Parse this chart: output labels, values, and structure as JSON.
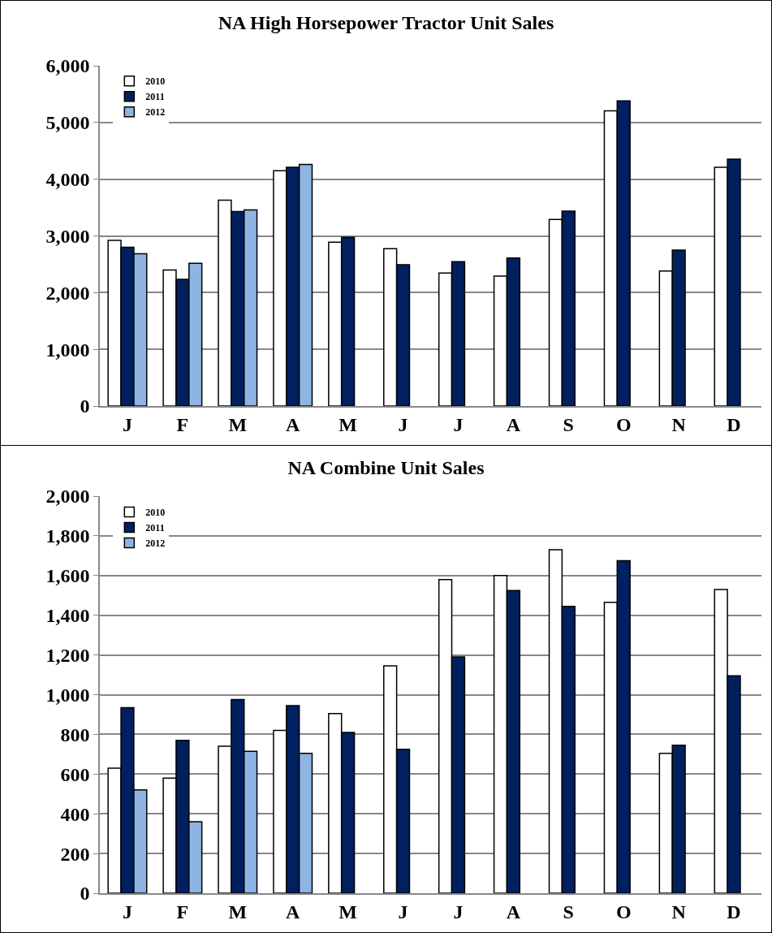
{
  "chart_data": [
    {
      "type": "bar",
      "title": "NA High Horsepower Tractor Unit Sales",
      "categories": [
        "J",
        "F",
        "M",
        "A",
        "M",
        "J",
        "J",
        "A",
        "S",
        "O",
        "N",
        "D"
      ],
      "series": [
        {
          "name": "2010",
          "color": "#ffffff",
          "values": [
            2920,
            2400,
            3630,
            4150,
            2890,
            2775,
            2345,
            2290,
            3290,
            5205,
            2380,
            4210
          ]
        },
        {
          "name": "2011",
          "color": "#002060",
          "values": [
            2800,
            2235,
            3430,
            4210,
            2975,
            2490,
            2545,
            2610,
            3435,
            5380,
            2750,
            4355
          ]
        },
        {
          "name": "2012",
          "color": "#8eb4e3",
          "values": [
            2685,
            2515,
            3460,
            4260,
            null,
            null,
            null,
            null,
            null,
            null,
            null,
            null
          ]
        }
      ],
      "ylim": [
        0,
        6000
      ],
      "yticks": [
        0,
        {
          "value": 1000,
          "label": "1,000"
        },
        {
          "value": 2000,
          "label": "2,000"
        },
        {
          "value": 3000,
          "label": "3,000"
        },
        {
          "value": 4000,
          "label": "4,000"
        },
        {
          "value": 5000,
          "label": "5,000"
        },
        {
          "value": 6000,
          "label": "6,000"
        }
      ],
      "grid": "y",
      "legend": "top left"
    },
    {
      "type": "bar",
      "title": "NA Combine Unit Sales",
      "categories": [
        "J",
        "F",
        "M",
        "A",
        "M",
        "J",
        "J",
        "A",
        "S",
        "O",
        "N",
        "D"
      ],
      "series": [
        {
          "name": "2010",
          "color": "#ffffff",
          "values": [
            630,
            580,
            740,
            820,
            905,
            1145,
            1580,
            1600,
            1730,
            1465,
            705,
            1530
          ]
        },
        {
          "name": "2011",
          "color": "#002060",
          "values": [
            935,
            770,
            975,
            945,
            810,
            725,
            1190,
            1525,
            1445,
            1675,
            745,
            1095
          ]
        },
        {
          "name": "2012",
          "color": "#8eb4e3",
          "values": [
            520,
            360,
            715,
            705,
            null,
            null,
            null,
            null,
            null,
            null,
            null,
            null
          ]
        }
      ],
      "ylim": [
        0,
        2000
      ],
      "yticks": [
        0,
        200,
        400,
        600,
        800,
        {
          "value": 1000,
          "label": "1,000"
        },
        {
          "value": 1200,
          "label": "1,200"
        },
        {
          "value": 1400,
          "label": "1,400"
        },
        {
          "value": 1600,
          "label": "1,600"
        },
        {
          "value": 1800,
          "label": "1,800"
        },
        {
          "value": 2000,
          "label": "2,000"
        }
      ],
      "grid": "y",
      "legend": "top left"
    }
  ]
}
